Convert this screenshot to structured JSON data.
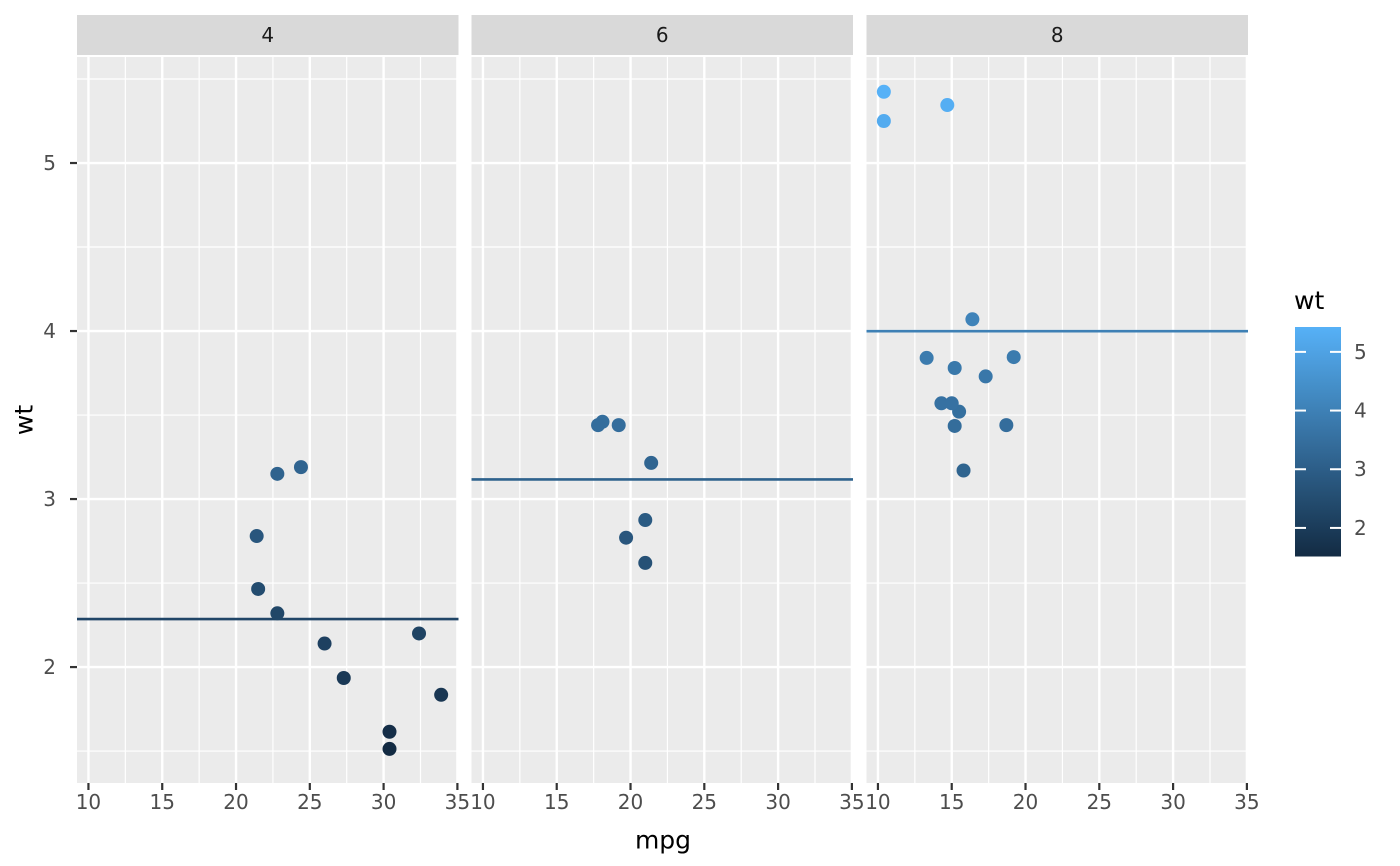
{
  "chart_data": {
    "type": "scatter",
    "title": "",
    "xlabel": "mpg",
    "ylabel": "wt",
    "facet_variable_values": [
      "4",
      "6",
      "8"
    ],
    "x_ticks": [
      "10",
      "15",
      "20",
      "25",
      "30",
      "35"
    ],
    "x_tick_values": [
      10,
      15,
      20,
      25,
      30,
      35
    ],
    "x_minor_values": [
      12.5,
      17.5,
      22.5,
      27.5,
      32.5
    ],
    "y_ticks": [
      "2",
      "3",
      "4",
      "5"
    ],
    "y_tick_values": [
      2,
      3,
      4,
      5
    ],
    "y_minor_values": [
      1.5,
      2.5,
      3.5,
      4.5,
      5.5
    ],
    "xlim": [
      9.225,
      35.075
    ],
    "ylim": [
      1.31,
      5.631
    ],
    "grid": true,
    "facets": [
      {
        "label": "4",
        "mean_line": 2.286,
        "points": [
          [
            22.8,
            2.32
          ],
          [
            24.4,
            3.19
          ],
          [
            22.8,
            3.15
          ],
          [
            32.4,
            2.2
          ],
          [
            30.4,
            1.615
          ],
          [
            33.9,
            1.835
          ],
          [
            21.5,
            2.465
          ],
          [
            27.3,
            1.935
          ],
          [
            26.0,
            2.14
          ],
          [
            30.4,
            1.513
          ],
          [
            21.4,
            2.78
          ]
        ]
      },
      {
        "label": "6",
        "mean_line": 3.117,
        "points": [
          [
            21.0,
            2.62
          ],
          [
            21.0,
            2.875
          ],
          [
            21.4,
            3.215
          ],
          [
            18.1,
            3.46
          ],
          [
            19.2,
            3.44
          ],
          [
            17.8,
            3.44
          ],
          [
            19.7,
            2.77
          ]
        ]
      },
      {
        "label": "8",
        "mean_line": 3.999,
        "points": [
          [
            18.7,
            3.44
          ],
          [
            14.3,
            3.57
          ],
          [
            16.4,
            4.07
          ],
          [
            17.3,
            3.73
          ],
          [
            15.2,
            3.78
          ],
          [
            10.4,
            5.25
          ],
          [
            10.4,
            5.424
          ],
          [
            14.7,
            5.345
          ],
          [
            15.5,
            3.52
          ],
          [
            15.2,
            3.435
          ],
          [
            13.3,
            3.84
          ],
          [
            19.2,
            3.845
          ],
          [
            15.8,
            3.17
          ],
          [
            15.0,
            3.57
          ]
        ]
      }
    ],
    "legend": {
      "title": "wt",
      "position": "right",
      "ticks": [
        "2",
        "3",
        "4",
        "5"
      ],
      "tick_values": [
        2,
        3,
        4,
        5
      ],
      "domain": [
        1.513,
        5.424
      ],
      "low_color": "#132B43",
      "high_color": "#56B1F7"
    }
  },
  "theme": {
    "background": "#FFFFFF",
    "panel_bg": "#EBEBEB",
    "strip_bg": "#D9D9D9",
    "grid_color": "#FFFFFF",
    "axis_text_color": "#4D4D4D",
    "strip_text_color": "#1A1A1A",
    "title_color": "#000000",
    "tick_mark_color": "#333333"
  }
}
